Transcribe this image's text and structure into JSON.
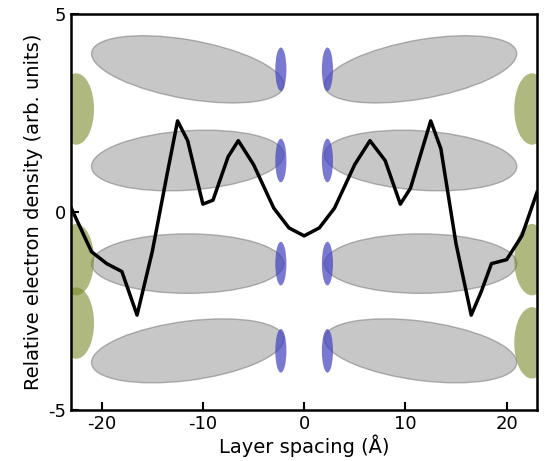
{
  "chart_data": {
    "type": "line",
    "x_label": "Layer spacing (Å)",
    "y_label": "Relative electron density (arb. units)",
    "x": [
      -23,
      -21,
      -19.5,
      -18,
      -16.5,
      -15,
      -13.5,
      -12.5,
      -11.5,
      -10,
      -9,
      -7.5,
      -6.5,
      -5,
      -3,
      -1.5,
      0,
      1.5,
      3,
      5,
      6.5,
      8,
      9.5,
      10.5,
      12.5,
      13.5,
      15,
      16.5,
      17.5,
      18.5,
      20,
      21.5,
      23
    ],
    "values": [
      0.1,
      -1.0,
      -1.3,
      -1.5,
      -2.6,
      -1.0,
      1.0,
      2.3,
      1.8,
      0.2,
      0.3,
      1.4,
      1.8,
      1.2,
      0.1,
      -0.4,
      -0.6,
      -0.4,
      0.1,
      1.2,
      1.8,
      1.3,
      0.2,
      0.6,
      2.3,
      1.6,
      -0.8,
      -2.6,
      -2.0,
      -1.3,
      -1.2,
      -0.6,
      0.5
    ],
    "color": "#000000",
    "xlim": [
      -23,
      23
    ],
    "ylim": [
      -5,
      5
    ],
    "xticks": [
      -20,
      -10,
      0,
      10,
      20
    ],
    "yticks": [
      -5,
      0,
      5
    ]
  }
}
